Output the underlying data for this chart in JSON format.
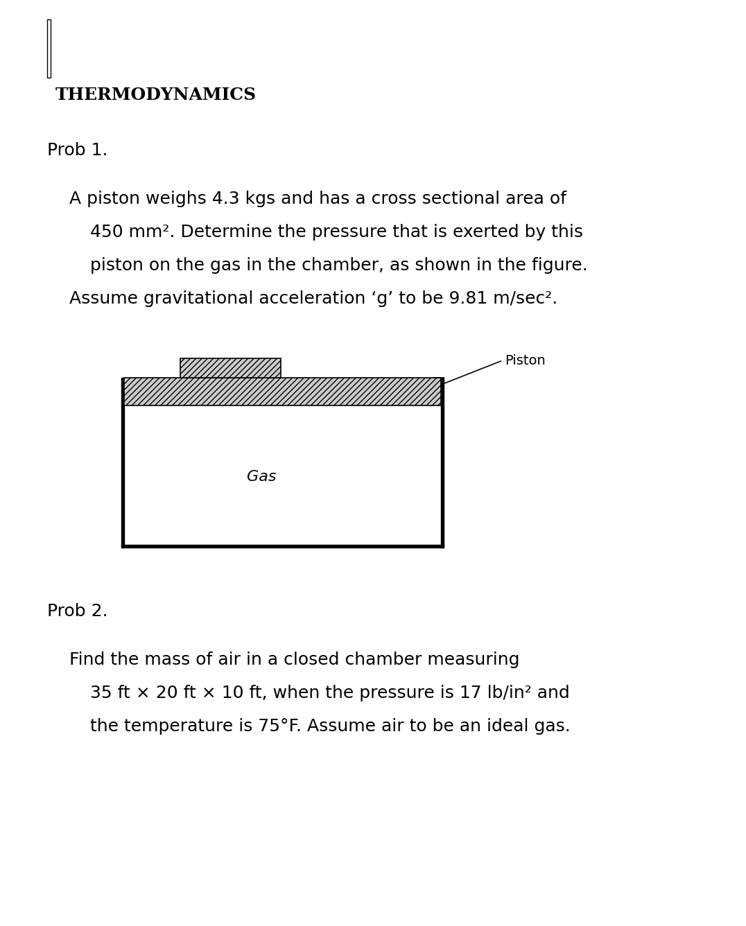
{
  "title": "THERMODYNAMICS",
  "prob1_label": "Prob 1.",
  "prob1_line1": "A piston weighs 4.3 kgs and has a cross sectional area of",
  "prob1_line2": "450 mm². Determine the pressure that is exerted by this",
  "prob1_line3": "piston on the gas in the chamber, as shown in the figure.",
  "prob1_line4": "Assume gravitational acceleration ‘g’ to be 9.81 m/sec².",
  "prob2_label": "Prob 2.",
  "prob2_line1": "Find the mass of air in a closed chamber measuring",
  "prob2_line2": "35 ft × 20 ft × 10 ft, when the pressure is 17 lb/in² and",
  "prob2_line3": "the temperature is 75°F. Assume air to be an ideal gas.",
  "label_piston": "Piston",
  "label_gas": "Gas",
  "bg_color": "#ffffff",
  "text_color": "#000000",
  "title_fontsize": 18,
  "prob_label_fontsize": 18,
  "body_fontsize": 18,
  "diagram_text_fontsize": 14
}
